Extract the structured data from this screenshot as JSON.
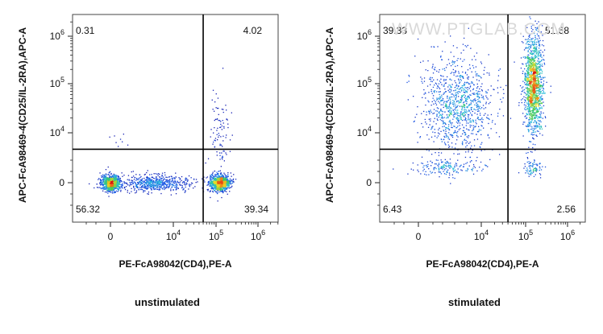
{
  "watermark": "WWW.PTGLAB.COM",
  "chart_data": [
    {
      "type": "scatter",
      "subtitle": "unstimulated",
      "xlabel": "PE-FcA98042(CD4),PE-A",
      "ylabel": "APC-FcA98469-4(CD25/IL-2RA),APC-A",
      "x_ticks": [
        "0",
        "10^4",
        "10^5",
        "10^6"
      ],
      "y_ticks": [
        "0",
        "10^4",
        "10^5",
        "10^6"
      ],
      "scale": "biexponential",
      "gate": {
        "x": 50000,
        "y": 2500
      },
      "quadrants": {
        "top_left": "0.31",
        "top_right": "4.02",
        "bottom_left": "56.32",
        "bottom_right": "39.34"
      },
      "populations": [
        {
          "x_center": 0,
          "y_center": 0,
          "x_spread": "narrow",
          "y_spread": "narrow",
          "share": 0.33
        },
        {
          "x_center": 3000,
          "y_center": 0,
          "x_spread": "wide",
          "y_spread": "narrow",
          "share": 0.23
        },
        {
          "x_center": 120000,
          "y_center": 0,
          "x_spread": "narrow",
          "y_spread": "narrow",
          "share": 0.39
        },
        {
          "x_center": 120000,
          "y_center": 5000,
          "x_spread": "narrow",
          "y_spread": "wide",
          "share": 0.04
        },
        {
          "x_center": 100,
          "y_center": 5000,
          "x_spread": "narrow",
          "y_spread": "narrow",
          "share": 0.003
        }
      ]
    },
    {
      "type": "scatter",
      "subtitle": "stimulated",
      "xlabel": "PE-FcA98042(CD4),PE-A",
      "ylabel": "APC-FcA98469-4(CD25/IL-2RA),APC-A",
      "x_ticks": [
        "0",
        "10^4",
        "10^5",
        "10^6"
      ],
      "y_ticks": [
        "0",
        "10^4",
        "10^5",
        "10^6"
      ],
      "scale": "biexponential",
      "gate": {
        "x": 40000,
        "y": 2500
      },
      "quadrants": {
        "top_left": "39.33",
        "top_right": "51.68",
        "bottom_left": "6.43",
        "bottom_right": "2.56"
      },
      "populations": [
        {
          "x_center": 2000,
          "y_center": 40000,
          "x_spread": "wide",
          "y_spread": "wide",
          "share": 0.39
        },
        {
          "x_center": 150000,
          "y_center": 100000,
          "x_spread": "narrow",
          "y_spread": "wide",
          "share": 0.52
        },
        {
          "x_center": 1000,
          "y_center": 500,
          "x_spread": "wide",
          "y_spread": "narrow",
          "share": 0.06
        },
        {
          "x_center": 150000,
          "y_center": 500,
          "x_spread": "narrow",
          "y_spread": "narrow",
          "share": 0.03
        }
      ]
    }
  ]
}
